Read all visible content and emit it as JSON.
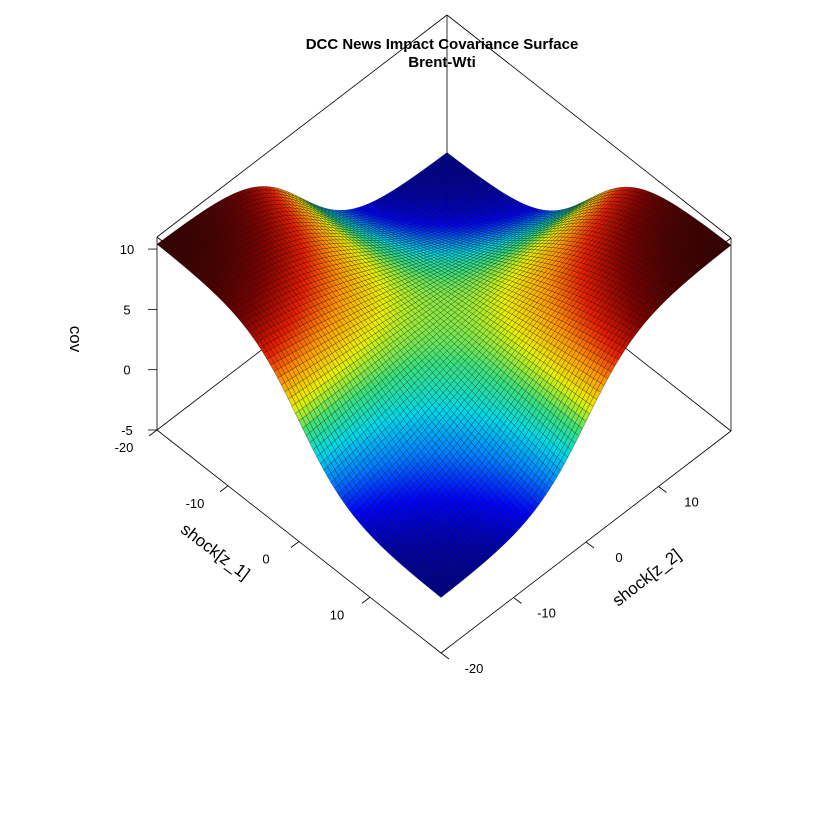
{
  "chart_data": {
    "type": "surface",
    "title": "DCC News Impact Covariance Surface",
    "subtitle": "Brent-Wti",
    "xlabel": "shock[z_1]",
    "ylabel": "shock[z_2]",
    "zlabel": "cov",
    "x_range": [
      -20,
      20
    ],
    "y_range": [
      -20,
      20
    ],
    "z_range": [
      -5,
      11
    ],
    "x_ticks": [
      -20,
      -10,
      0,
      10
    ],
    "y_ticks": [
      -20,
      -10,
      0,
      10
    ],
    "z_ticks": [
      -5,
      0,
      5,
      10
    ],
    "grid_resolution": 81,
    "surface_samples": [
      {
        "z1": -20,
        "z2": -20,
        "cov": 10.4
      },
      {
        "z1": -20,
        "z2": 20,
        "cov": -0.4
      },
      {
        "z1": 20,
        "z2": -20,
        "cov": -0.4
      },
      {
        "z1": 20,
        "z2": 20,
        "cov": 10.4
      },
      {
        "z1": 0,
        "z2": 0,
        "cov": 0.5
      }
    ],
    "colormap": [
      "#00007f",
      "#0000ff",
      "#0080ff",
      "#00d8e8",
      "#3ce07a",
      "#e8f000",
      "#ff9800",
      "#e81c00",
      "#7f0000",
      "#2a0000"
    ]
  }
}
